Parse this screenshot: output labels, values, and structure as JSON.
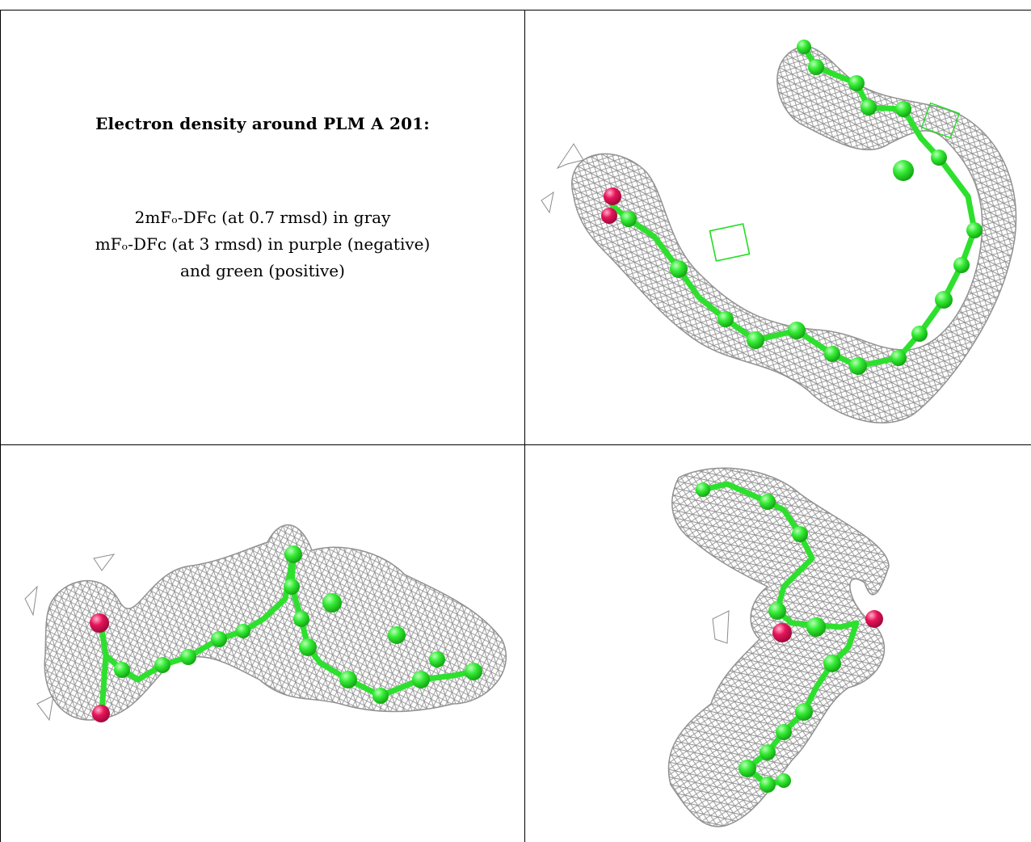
{
  "caption": {
    "title": "Electron density around PLM A 201:",
    "legend_line1": "2mFₒ-DFᴄ (at 0.7 rmsd) in gray",
    "legend_line2": "mFₒ-DFᴄ (at 3 rmsd) in purple (negative)",
    "legend_line3": "and green (positive)"
  },
  "colors": {
    "mesh": "#8c8c8c",
    "carbon": "#33ee33",
    "oxygen": "#e8145a",
    "difference_positive": "#22dd22"
  },
  "views": [
    {
      "name": "view-top-right"
    },
    {
      "name": "view-bottom-left"
    },
    {
      "name": "view-bottom-right"
    }
  ]
}
